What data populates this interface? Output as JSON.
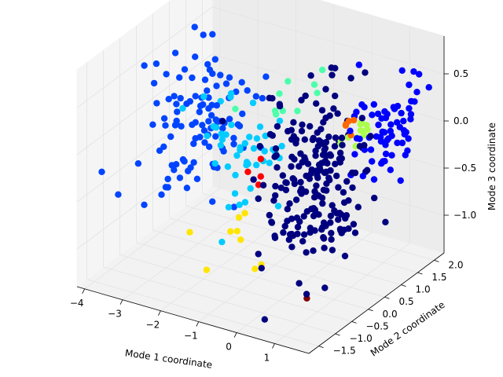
{
  "chart_data": {
    "type": "scatter",
    "projection": "3d",
    "xlabel": "Mode 1 coordinate",
    "ylabel": "Mode 2 coordinate",
    "zlabel": "Mode 3 coordinate",
    "xlim": [
      -4.2,
      1.9
    ],
    "ylim": [
      -1.8,
      2.3
    ],
    "zlim": [
      -1.4,
      0.9
    ],
    "xticks": [
      "−4",
      "−3",
      "−2",
      "−1",
      "0",
      "1"
    ],
    "yticks": [
      "−1.5",
      "−1.0",
      "−0.5",
      "0.0",
      "0.5",
      "1.0",
      "1.5",
      "2.0"
    ],
    "zticks": [
      "−1.0",
      "−0.5",
      "0.0",
      "0.5"
    ],
    "grid": true,
    "colormap": "jet",
    "clusters": [
      {
        "color": "#00007f",
        "center": [
          0.5,
          0.0,
          -0.2
        ],
        "spread": [
          0.5,
          0.55,
          0.45
        ],
        "count": 220
      },
      {
        "color": "#0000ff",
        "center": [
          1.2,
          1.3,
          0.1
        ],
        "spread": [
          0.35,
          0.45,
          0.3
        ],
        "count": 70
      },
      {
        "color": "#0044ff",
        "center": [
          -2.8,
          0.3,
          0.0
        ],
        "spread": [
          0.55,
          0.6,
          0.35
        ],
        "count": 110
      },
      {
        "color": "#00ccff",
        "center": [
          -1.3,
          0.0,
          -0.1
        ],
        "spread": [
          0.7,
          0.5,
          0.35
        ],
        "count": 45
      },
      {
        "color": "#4cffaa",
        "center": [
          -1.0,
          0.8,
          0.35
        ],
        "spread": [
          0.6,
          0.4,
          0.2
        ],
        "count": 10
      },
      {
        "color": "#aaff4c",
        "center": [
          0.6,
          1.1,
          0.05
        ],
        "spread": [
          0.12,
          0.15,
          0.1
        ],
        "count": 12
      },
      {
        "color": "#ffe500",
        "center": [
          -0.9,
          -0.4,
          -0.9
        ],
        "spread": [
          0.5,
          0.3,
          0.15
        ],
        "count": 9
      },
      {
        "color": "#ff6800",
        "center": [
          0.6,
          1.0,
          0.15
        ],
        "spread": [
          0.05,
          0.05,
          0.05
        ],
        "count": 5
      },
      {
        "color": "#ff0000",
        "center": [
          -1.2,
          0.3,
          -0.35
        ],
        "spread": [
          0.2,
          0.15,
          0.1
        ],
        "count": 4
      },
      {
        "color": "#7f0000",
        "center": [
          0.9,
          -0.7,
          -1.2
        ],
        "spread": [
          0.02,
          0.02,
          0.02
        ],
        "count": 1
      }
    ]
  }
}
